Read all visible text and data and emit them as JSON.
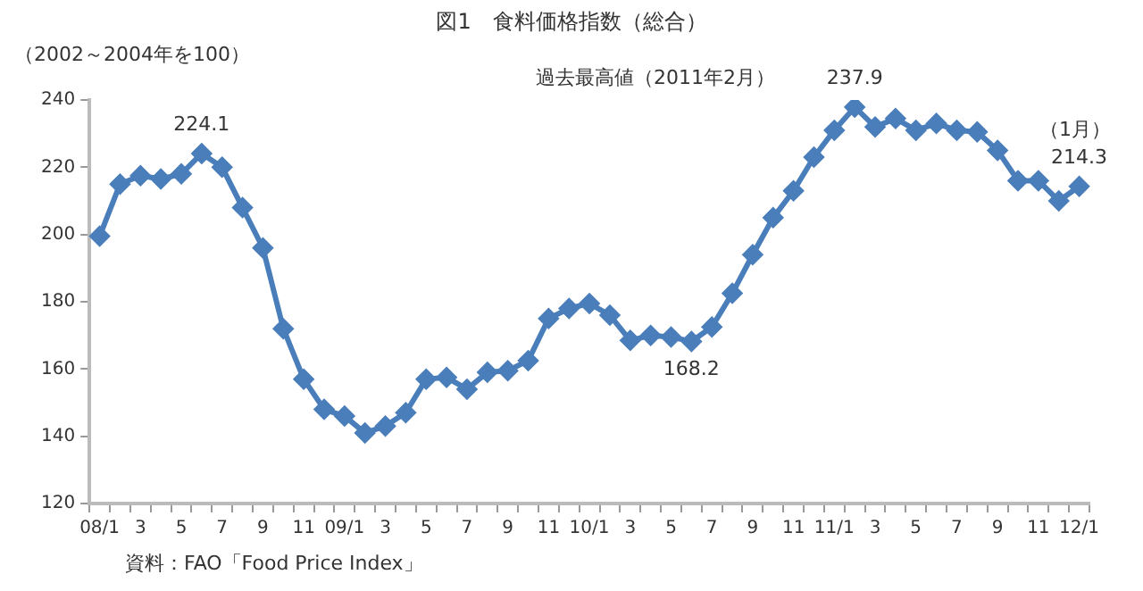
{
  "chart_data": {
    "type": "line",
    "title": "図1　食料価格指数（総合）",
    "ylabel": "（2002～2004年を100）",
    "categories": [
      "08/1",
      null,
      "3",
      null,
      "5",
      null,
      "7",
      null,
      "9",
      null,
      "11",
      null,
      "09/1",
      null,
      "3",
      null,
      "5",
      null,
      "7",
      null,
      "9",
      null,
      "11",
      null,
      "10/1",
      null,
      "3",
      null,
      "5",
      null,
      "7",
      null,
      "9",
      null,
      "11",
      null,
      "11/1",
      null,
      "3",
      null,
      "5",
      null,
      "7",
      null,
      "9",
      null,
      "11",
      null,
      "12/1"
    ],
    "series": [
      {
        "color": "#4a7ebb",
        "values": [
          199.5,
          215,
          217.5,
          216.5,
          218,
          224.1,
          220,
          208,
          196,
          172,
          157,
          148,
          146,
          141,
          143,
          147,
          157,
          157.5,
          154,
          159,
          159.5,
          162.5,
          175,
          178,
          179.5,
          176,
          168.5,
          170,
          169.5,
          168.2,
          172.5,
          182.5,
          194,
          205,
          213,
          223,
          231,
          237.9,
          232,
          234.5,
          231,
          233,
          231,
          230.5,
          225,
          216,
          216,
          210,
          214.3
        ],
        "value_labels": [
          null,
          null,
          null,
          null,
          null,
          "224.1",
          null,
          null,
          null,
          null,
          null,
          null,
          null,
          null,
          null,
          null,
          null,
          null,
          null,
          null,
          null,
          null,
          null,
          null,
          null,
          null,
          null,
          null,
          null,
          "168.2",
          null,
          null,
          null,
          null,
          null,
          null,
          null,
          "237.9",
          null,
          null,
          null,
          null,
          null,
          null,
          null,
          null,
          null,
          null,
          "214.3"
        ]
      }
    ],
    "ylim": [
      120,
      240
    ],
    "yticks": [
      120,
      140,
      160,
      180,
      200,
      220,
      240
    ],
    "grid": false,
    "legend": false,
    "marker": "diamond",
    "line_style": "solid",
    "annotations": [
      "過去最高値（2011年2月）",
      "（1月）",
      "資料：FAO「Food Price Index」"
    ]
  }
}
